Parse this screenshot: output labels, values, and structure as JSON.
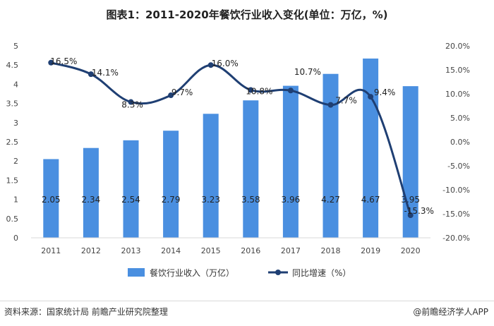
{
  "title": "图表1：2011-2020年餐饮行业收入变化(单位：万亿，%)",
  "source": "资料来源：国家统计局 前瞻产业研究院整理",
  "credit": "@前瞻经济学人APP",
  "colors": {
    "bar": "#4a8fe0",
    "line": "#1f3f73",
    "grid": "#d9d9d9"
  },
  "chart_data": {
    "type": "bar+line",
    "categories": [
      "2011",
      "2012",
      "2013",
      "2014",
      "2015",
      "2016",
      "2017",
      "2018",
      "2019",
      "2020"
    ],
    "series": [
      {
        "name": "餐饮行业收入（万亿）",
        "type": "bar",
        "axis": "left",
        "values": [
          2.05,
          2.34,
          2.54,
          2.79,
          3.23,
          3.58,
          3.96,
          4.27,
          4.67,
          3.95
        ],
        "labels": [
          "2.05",
          "2.34",
          "2.54",
          "2.79",
          "3.23",
          "3.58",
          "3.96",
          "4.27",
          "4.67",
          "3.95"
        ]
      },
      {
        "name": "同比增速（%）",
        "type": "line",
        "axis": "right",
        "values": [
          16.5,
          14.1,
          8.3,
          9.7,
          16.0,
          10.8,
          10.7,
          7.7,
          9.4,
          -15.3
        ],
        "labels": [
          "16.5%",
          "14.1%",
          "8.3%",
          "9.7%",
          "16.0%",
          "10.8%",
          "10.7%",
          "7.7%",
          "9.4%",
          "-15.3%"
        ]
      }
    ],
    "y_left": {
      "min": 0,
      "max": 5,
      "ticks": [
        "0",
        "0.5",
        "1",
        "1.5",
        "2",
        "2.5",
        "3",
        "3.5",
        "4",
        "4.5",
        "5"
      ]
    },
    "y_right": {
      "min": -20,
      "max": 20,
      "ticks": [
        "-20.0%",
        "-15.0%",
        "-10.0%",
        "-5.0%",
        "0.0%",
        "5.0%",
        "10.0%",
        "15.0%",
        "20.0%"
      ]
    },
    "legend_position": "bottom",
    "grid": false
  }
}
